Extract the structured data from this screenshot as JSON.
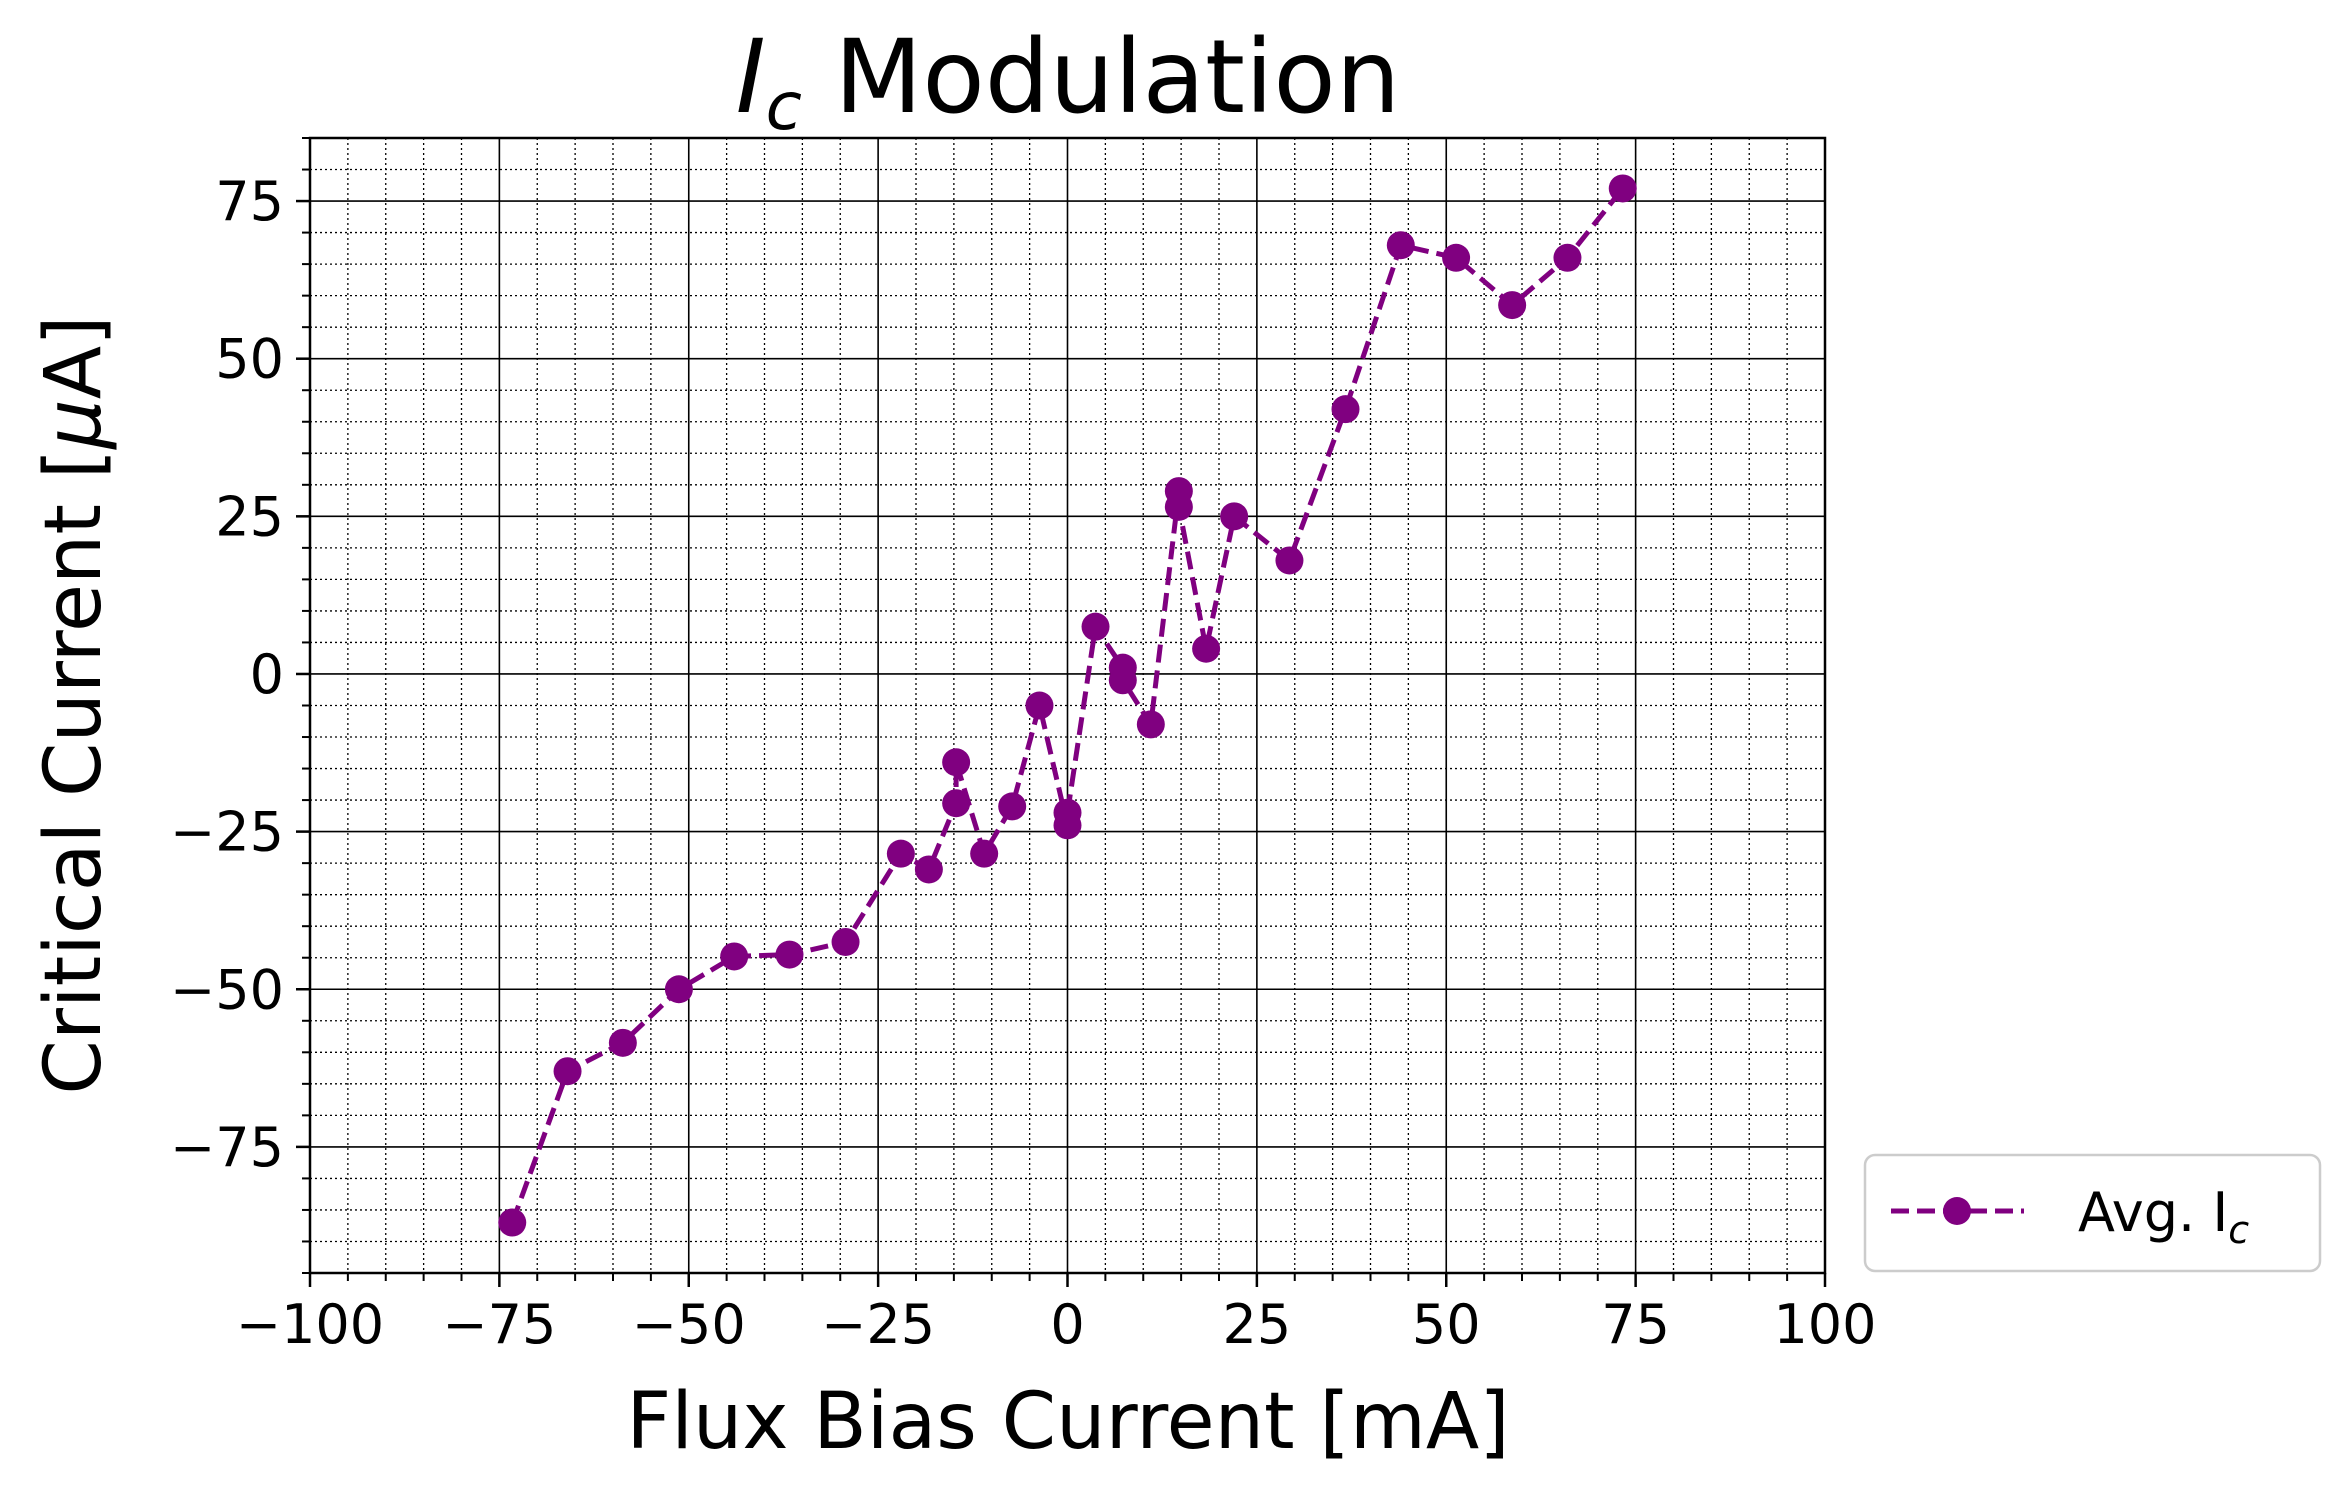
{
  "chart_data": {
    "type": "line",
    "title_main": "I",
    "title_sub": "c",
    "title_rest": " Modulation",
    "xlabel": "Flux Bias Current [mA]",
    "ylabel_main": "Critical Current [",
    "ylabel_mu": "μ",
    "ylabel_rest": "A]",
    "xlim": [
      -100,
      100
    ],
    "ylim": [
      -95,
      85
    ],
    "xticks": [
      -100,
      -75,
      -50,
      -25,
      0,
      25,
      50,
      75,
      100
    ],
    "xtick_labels": [
      "−100",
      "−75",
      "−50",
      "−25",
      "0",
      "25",
      "50",
      "75",
      "100"
    ],
    "yticks": [
      -75,
      -50,
      -25,
      0,
      25,
      50,
      75
    ],
    "ytick_labels": [
      "−75",
      "−50",
      "−25",
      "0",
      "25",
      "50",
      "75"
    ],
    "grid": true,
    "minor_grid": true,
    "legend_position": "outside-bottom-right",
    "series": [
      {
        "name_main": "Avg. I",
        "name_sub": "c",
        "color": "#800080",
        "line_style": "dashed",
        "marker": "circle",
        "x": [
          -73.3,
          -66.0,
          -58.7,
          -51.3,
          -44.0,
          -36.7,
          -29.3,
          -22.0,
          -18.3,
          -14.7,
          -14.7,
          -11.0,
          -7.3,
          -3.7,
          0.0,
          0.0,
          3.7,
          7.3,
          7.3,
          11.0,
          14.7,
          14.7,
          18.3,
          22.0,
          29.3,
          36.7,
          44.0,
          51.3,
          58.7,
          66.0,
          73.3
        ],
        "y": [
          -87.0,
          -63.0,
          -58.5,
          -50.0,
          -44.8,
          -44.5,
          -42.5,
          -28.5,
          -31.0,
          -20.5,
          -14.0,
          -28.5,
          -21.0,
          -5.0,
          -24.0,
          -22.0,
          7.5,
          1.0,
          -1.0,
          -8.0,
          29.0,
          26.5,
          4.0,
          25.0,
          18.0,
          42.0,
          68.0,
          66.0,
          58.5,
          66.0,
          77.0
        ]
      }
    ]
  }
}
